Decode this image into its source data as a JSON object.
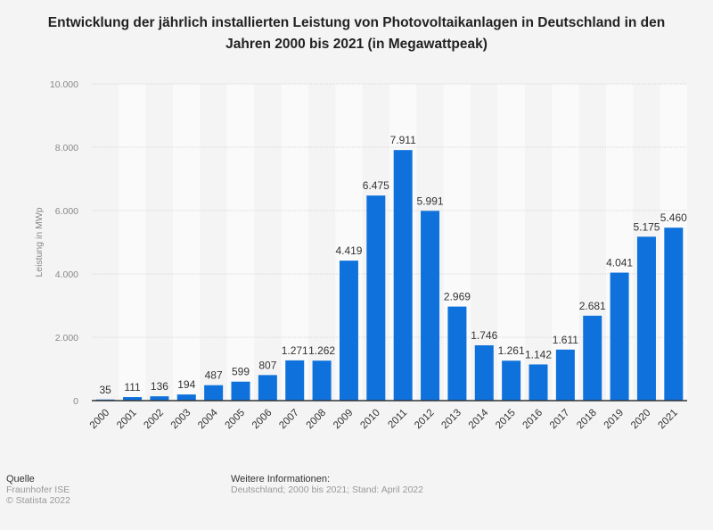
{
  "chart_data": {
    "type": "bar",
    "title": "Entwicklung der jährlich installierten Leistung von Photovoltaikanlagen in Deutschland in den Jahren 2000 bis 2021 (in Megawattpeak)",
    "xlabel": "",
    "ylabel": "Leistung in MWp",
    "ylim": [
      0,
      10000
    ],
    "yticks": [
      0,
      2000,
      4000,
      6000,
      8000,
      10000
    ],
    "ytick_labels": [
      "0",
      "2.000",
      "4.000",
      "6.000",
      "8.000",
      "10.000"
    ],
    "grid": true,
    "categories": [
      "2000",
      "2001",
      "2002",
      "2003",
      "2004",
      "2005",
      "2006",
      "2007",
      "2008",
      "2009",
      "2010",
      "2011",
      "2012",
      "2013",
      "2014",
      "2015",
      "2016",
      "2017",
      "2018",
      "2019",
      "2020",
      "2021"
    ],
    "values": [
      35,
      111,
      136,
      194,
      487,
      599,
      807,
      1271,
      1262,
      4419,
      6475,
      7911,
      5991,
      2969,
      1746,
      1261,
      1142,
      1611,
      2681,
      4041,
      5175,
      5460
    ],
    "value_labels": [
      "35",
      "111",
      "136",
      "194",
      "487",
      "599",
      "807",
      "1.271",
      "1.262",
      "4.419",
      "6.475",
      "7.911",
      "5.991",
      "2.969",
      "1.746",
      "1.261",
      "1.142",
      "1.611",
      "2.681",
      "4.041",
      "5.175",
      "5.460"
    ],
    "bar_color": "#0f72dc"
  },
  "footer": {
    "source_heading": "Quelle",
    "source": "Fraunhofer ISE",
    "copyright": "© Statista 2022",
    "info_heading": "Weitere Informationen:",
    "info": "Deutschland; 2000 bis 2021; Stand: April 2022"
  }
}
